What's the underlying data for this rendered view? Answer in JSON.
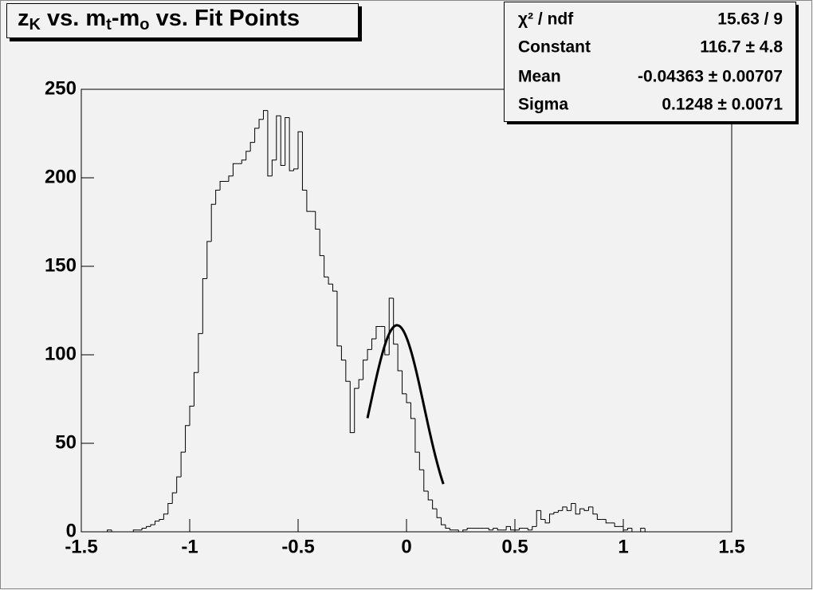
{
  "chart_data": {
    "type": "histogram",
    "title": [
      "z",
      "K",
      " vs. m",
      "t",
      "-m",
      "o",
      " vs. Fit Points"
    ],
    "bins": [
      -1.5,
      -1.48,
      -1.46,
      -1.44,
      -1.42,
      -1.4,
      -1.38,
      -1.36,
      -1.34,
      -1.32,
      -1.3,
      -1.28,
      -1.26,
      -1.24,
      -1.22,
      -1.2,
      -1.18,
      -1.16,
      -1.14,
      -1.12,
      -1.1,
      -1.08,
      -1.06,
      -1.04,
      -1.02,
      -1,
      -0.98,
      -0.96,
      -0.94,
      -0.92,
      -0.9,
      -0.88,
      -0.86,
      -0.84,
      -0.82,
      -0.8,
      -0.78,
      -0.76,
      -0.74,
      -0.72,
      -0.7,
      -0.68,
      -0.66,
      -0.64,
      -0.62,
      -0.6,
      -0.58,
      -0.56,
      -0.54,
      -0.52,
      -0.5,
      -0.48,
      -0.46,
      -0.44,
      -0.42,
      -0.4,
      -0.38,
      -0.36,
      -0.34,
      -0.32,
      -0.3,
      -0.28,
      -0.26,
      -0.24,
      -0.22,
      -0.2,
      -0.18,
      -0.16,
      -0.14,
      -0.12,
      -0.1,
      -0.08,
      -0.06,
      -0.04,
      -0.02,
      0,
      0.02,
      0.04,
      0.06,
      0.08,
      0.1,
      0.12,
      0.14,
      0.16,
      0.18,
      0.2,
      0.22,
      0.24,
      0.26,
      0.28,
      0.3,
      0.32,
      0.34,
      0.36,
      0.38,
      0.4,
      0.42,
      0.44,
      0.46,
      0.48,
      0.5,
      0.52,
      0.54,
      0.56,
      0.58,
      0.6,
      0.62,
      0.64,
      0.66,
      0.68,
      0.7,
      0.72,
      0.74,
      0.76,
      0.78,
      0.8,
      0.82,
      0.84,
      0.86,
      0.88,
      0.9,
      0.92,
      0.94,
      0.96,
      0.98,
      1,
      1.02,
      1.04,
      1.06,
      1.08,
      1.1,
      1.12,
      1.14,
      1.16,
      1.18,
      1.2,
      1.22,
      1.24,
      1.26,
      1.28,
      1.3,
      1.32,
      1.34,
      1.36,
      1.38,
      1.4,
      1.42,
      1.44,
      1.46,
      1.48,
      1.5
    ],
    "values": [
      0,
      0,
      0,
      0,
      0,
      0,
      1,
      0,
      0,
      0,
      0,
      0,
      1,
      1,
      2,
      3,
      4,
      6,
      7,
      10,
      16,
      22,
      31,
      45,
      60,
      71,
      90,
      112,
      143,
      164,
      185,
      193,
      198,
      198,
      201,
      208,
      208,
      210,
      215,
      220,
      228,
      233,
      238,
      201,
      210,
      235,
      207,
      234,
      204,
      205,
      226,
      193,
      181,
      181,
      171,
      156,
      144,
      140,
      136,
      105,
      97,
      85,
      56,
      81,
      86,
      97,
      103,
      109,
      116,
      116,
      100,
      132,
      106,
      91,
      78,
      73,
      64,
      45,
      35,
      23,
      18,
      13,
      8,
      4,
      2,
      1,
      1,
      0,
      1,
      2,
      2,
      2,
      2,
      2,
      1,
      2,
      1,
      1,
      3,
      1,
      1,
      2,
      2,
      1,
      3,
      12,
      7,
      5,
      10,
      11,
      12,
      14,
      12,
      16,
      10,
      13,
      12,
      14,
      10,
      7,
      7,
      5,
      5,
      3,
      3,
      1,
      2,
      0,
      0,
      2,
      0,
      0,
      0,
      0,
      0,
      0,
      0,
      0,
      0,
      0,
      0,
      0,
      0,
      0,
      0,
      0,
      0,
      0,
      0,
      0
    ],
    "color": "#000000",
    "xlim": [
      -1.5,
      1.5
    ],
    "xticks": [
      -1.5,
      -1,
      -0.5,
      0,
      0.5,
      1,
      1.5
    ],
    "ylim": [
      0,
      250
    ],
    "yticks": [
      0,
      50,
      100,
      150,
      200,
      250
    ],
    "fit": {
      "type": "gaussian",
      "range": [
        -0.18,
        0.17
      ],
      "color": "#000000"
    },
    "stats": [
      {
        "name": "χ² / ndf",
        "label": "15.63 / 9"
      },
      {
        "name": "Constant",
        "value": 116.7,
        "label": "116.7 ± 4.8"
      },
      {
        "name": "Mean",
        "value": -0.04363,
        "label": "-0.04363 ± 0.00707"
      },
      {
        "name": "Sigma",
        "value": 0.1248,
        "label": "0.1248 ± 0.0071"
      }
    ]
  }
}
